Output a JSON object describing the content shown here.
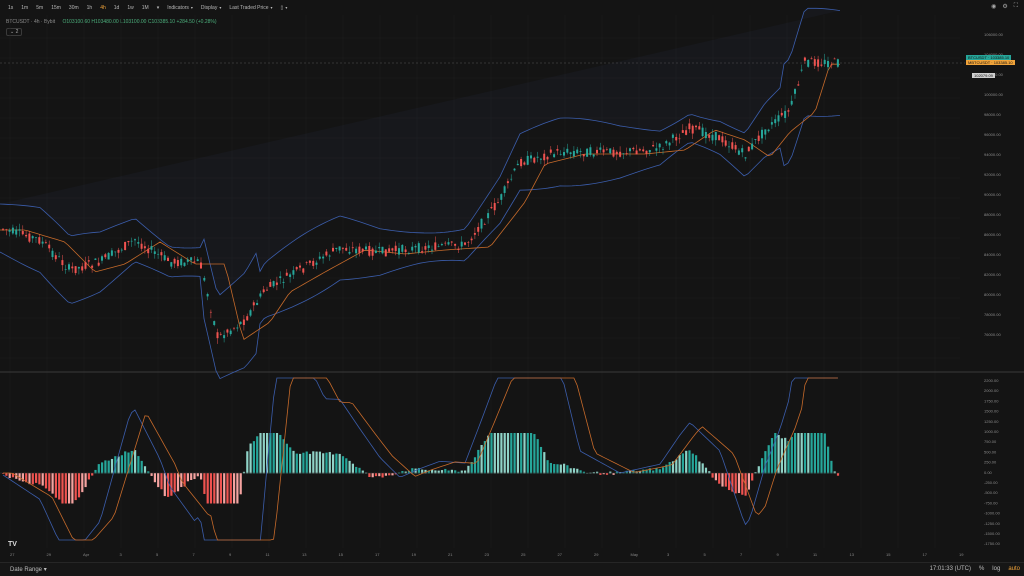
{
  "toolbar": {
    "timeframes": [
      "1s",
      "1m",
      "5m",
      "15m",
      "30m",
      "1h",
      "4h",
      "1d",
      "1w",
      "1M"
    ],
    "active_timeframe": "4h",
    "more_caret": "▾",
    "indicators_label": "Indicators",
    "display_label": "Display",
    "price_mode_label": "Last Traded Price",
    "layout_icon_label": "▯"
  },
  "legend": {
    "symbol": "BTCUSDT · 4h · Bybit",
    "ohlc": "O103100.60 H103480.00 L103100.00 C103385.10 +284.50 (+0.28%)",
    "collapse_label": "⌄ 2"
  },
  "price_axis": {
    "labels": [
      "106000.00",
      "104000.00",
      "102000.00",
      "100000.00",
      "98000.00",
      "96000.00",
      "94000.00",
      "92000.00",
      "90000.00",
      "88000.00",
      "86000.00",
      "84000.00",
      "82000.00",
      "80000.00",
      "78000.00",
      "76000.00"
    ],
    "badge_last": "BTCUSDT · 103385.10",
    "badge_mark": "MBTCUSDT · 103385.10",
    "badge_other": "102079.09"
  },
  "osc_axis": {
    "labels": [
      "2200.00",
      "2000.00",
      "1750.00",
      "1500.00",
      "1250.00",
      "1000.00",
      "750.00",
      "500.00",
      "250.00",
      "0.00",
      "-250.00",
      "-500.00",
      "-750.00",
      "-1000.00",
      "-1250.00",
      "-1500.00",
      "-1750.00"
    ]
  },
  "time_axis": {
    "labels": [
      "27",
      "29",
      "Apr",
      "3",
      "5",
      "7",
      "9",
      "11",
      "13",
      "15",
      "17",
      "19",
      "21",
      "23",
      "25",
      "27",
      "29",
      "May",
      "3",
      "5",
      "7",
      "9",
      "11",
      "13",
      "15",
      "17",
      "19"
    ]
  },
  "bottombar": {
    "date_range_label": "Date Range",
    "clock": "17:01:33 (UTC)",
    "percent_label": "%",
    "log_label": "log",
    "auto_label": "auto"
  },
  "colors": {
    "up": "#26a69a",
    "down": "#ef5350",
    "band": "#3b5dab",
    "mid": "#c66a2a",
    "accent": "#f0a33a"
  }
}
